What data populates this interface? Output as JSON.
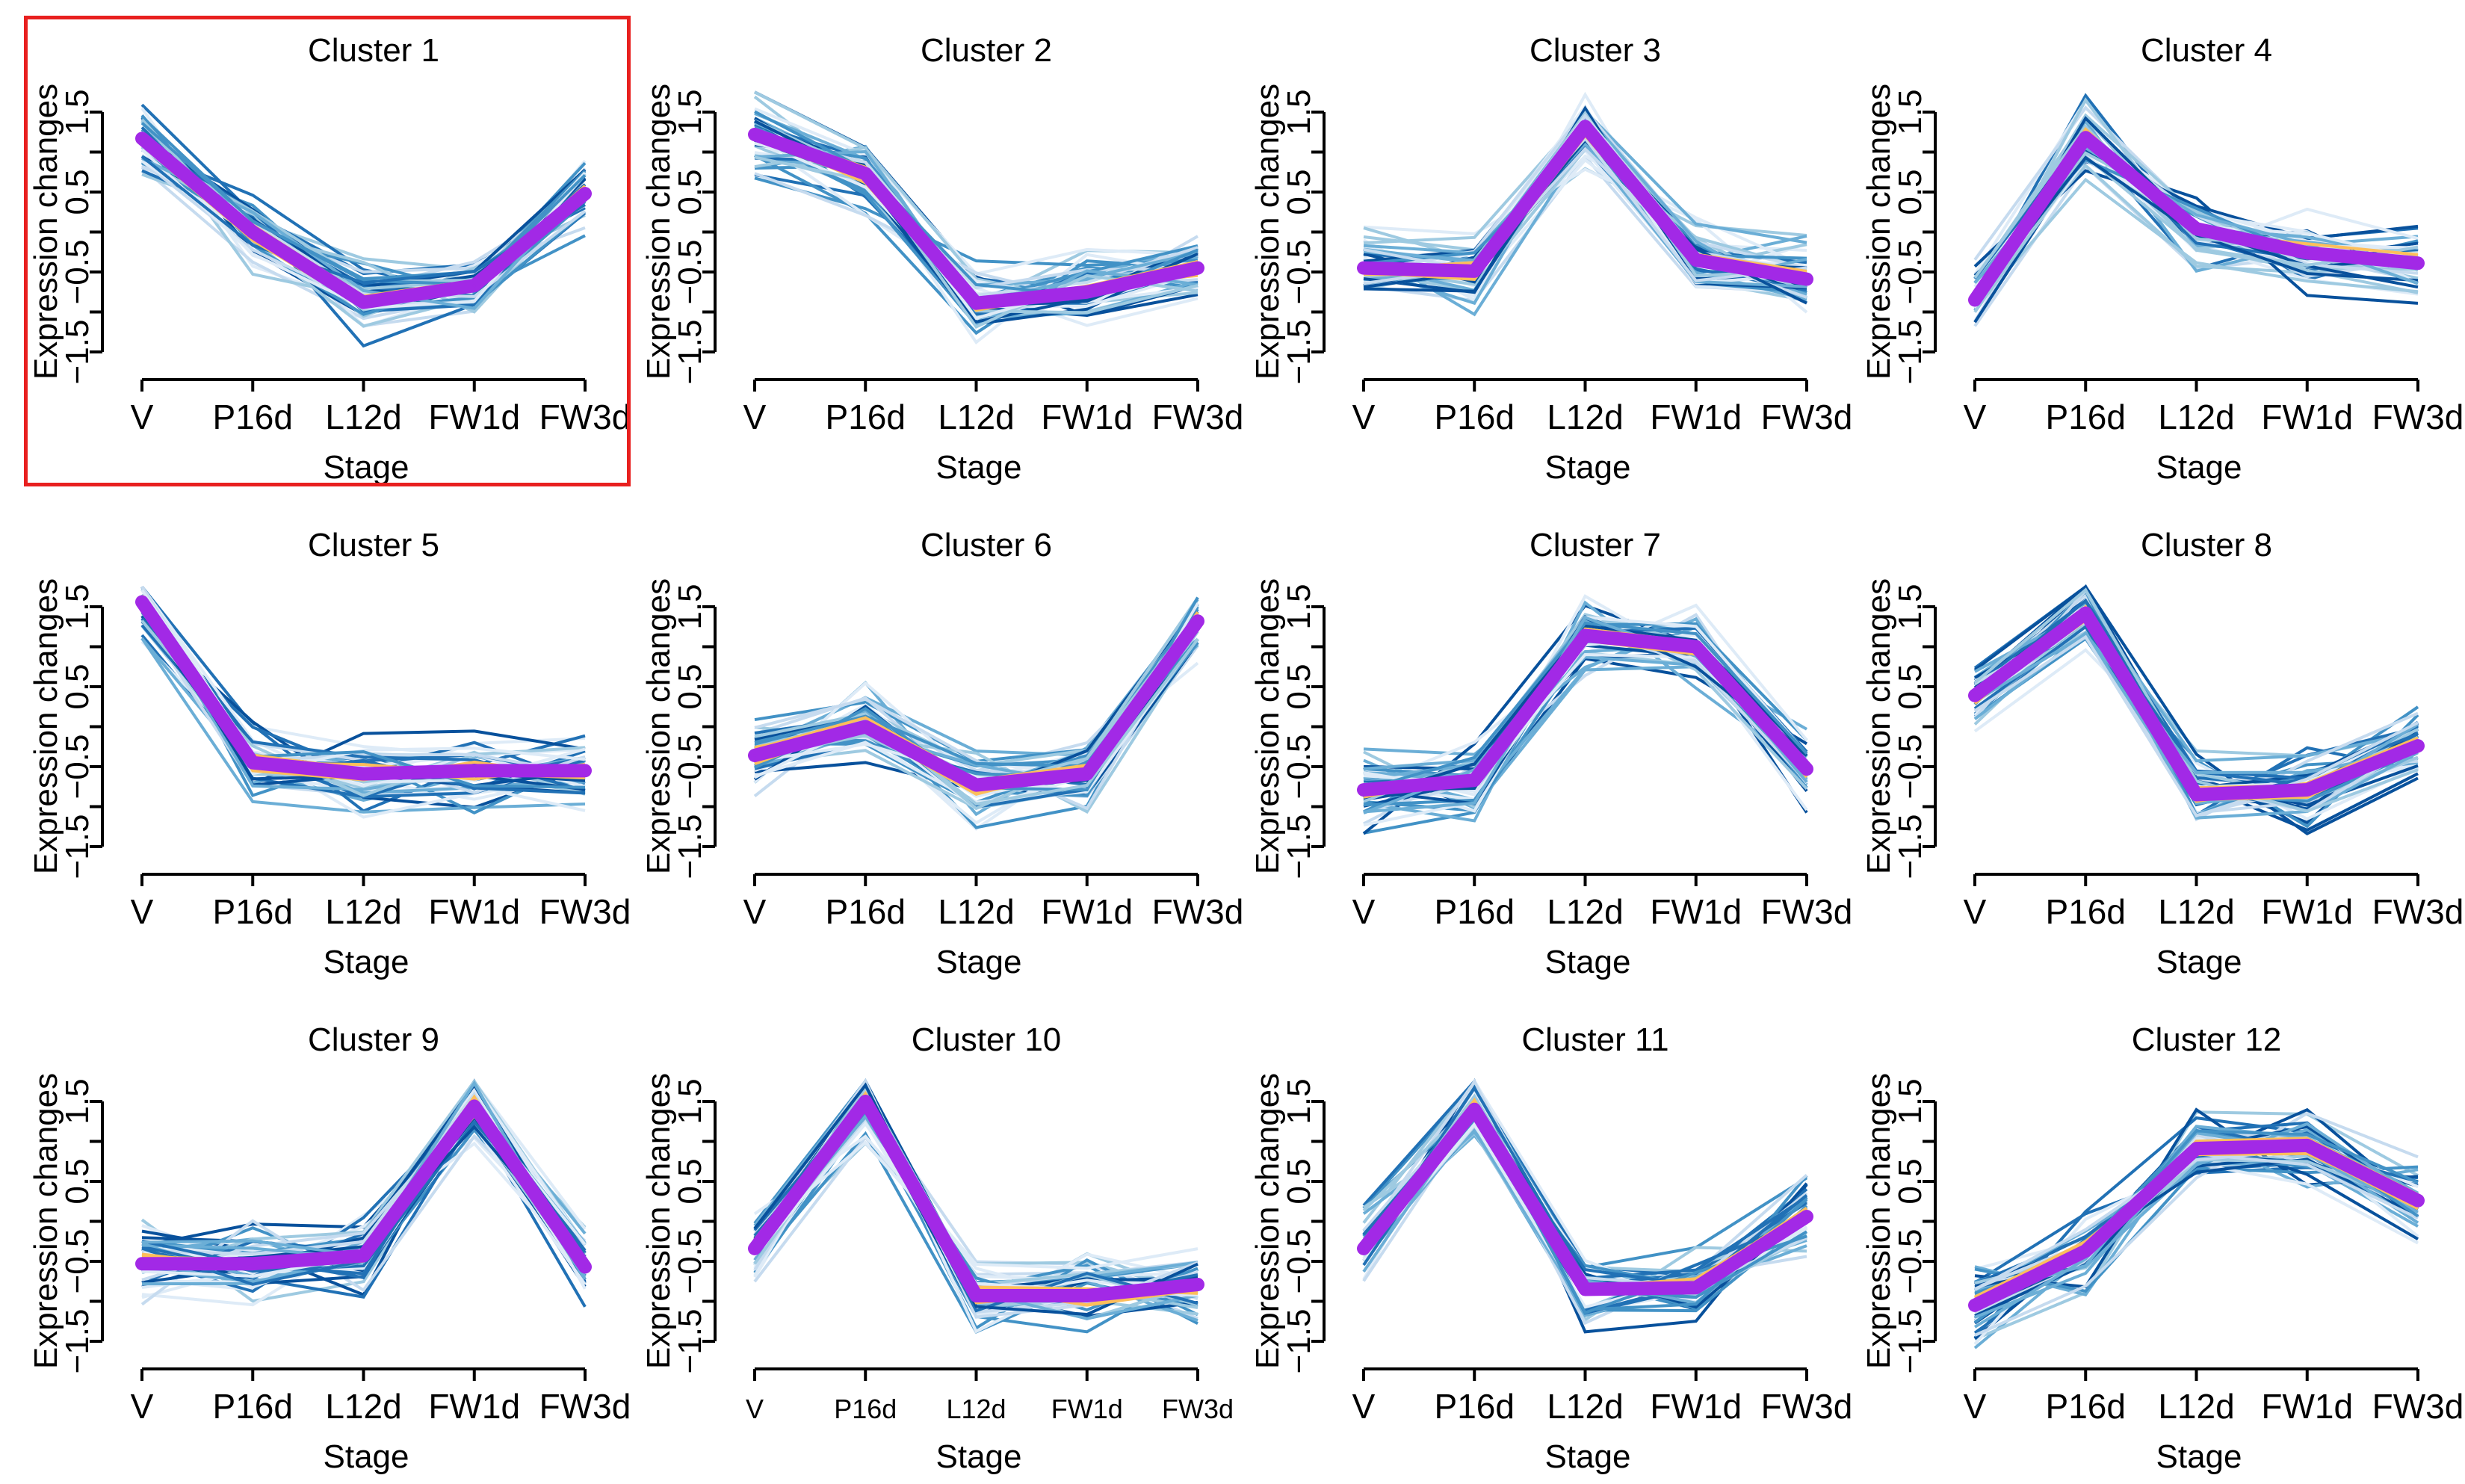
{
  "highlighted_panel": "Cluster 1",
  "highlight_color": "#e8201f",
  "colors": {
    "mean": "#a229e6",
    "highlight_profiles": "#fdbe5b",
    "profiles": [
      "#08519c",
      "#2171b5",
      "#4292c6",
      "#6baed6",
      "#9ecae1",
      "#c6dbef",
      "#deebf7"
    ]
  },
  "chart_data": [
    {
      "type": "line",
      "title": "Cluster 1",
      "xlabel": "Stage",
      "ylabel": "Expression changes",
      "categories": [
        "V",
        "P16d",
        "L12d",
        "FW1d",
        "FW3d"
      ],
      "yticks": [
        "−1.5",
        "−0.5",
        "0.5",
        "1.5"
      ],
      "ylim": [
        -1.5,
        1.5
      ],
      "series": [
        {
          "name": "mean",
          "values": [
            1.17,
            0.0,
            -0.88,
            -0.67,
            0.48
          ]
        }
      ]
    },
    {
      "type": "line",
      "title": "Cluster 2",
      "xlabel": "Stage",
      "ylabel": "Expression changes",
      "categories": [
        "V",
        "P16d",
        "L12d",
        "FW1d",
        "FW3d"
      ],
      "yticks": [
        "−1.5",
        "−0.5",
        "0.5",
        "1.5"
      ],
      "ylim": [
        -1.5,
        1.5
      ],
      "series": [
        {
          "name": "mean",
          "values": [
            1.22,
            0.73,
            -0.89,
            -0.75,
            -0.45
          ]
        }
      ]
    },
    {
      "type": "line",
      "title": "Cluster 3",
      "xlabel": "Stage",
      "ylabel": "Expression changes",
      "categories": [
        "V",
        "P16d",
        "L12d",
        "FW1d",
        "FW3d"
      ],
      "yticks": [
        "−1.5",
        "−0.5",
        "0.5",
        "1.5"
      ],
      "ylim": [
        -1.5,
        1.5
      ],
      "series": [
        {
          "name": "mean",
          "values": [
            -0.45,
            -0.49,
            1.32,
            -0.35,
            -0.59
          ]
        }
      ]
    },
    {
      "type": "line",
      "title": "Cluster 4",
      "xlabel": "Stage",
      "ylabel": "Expression changes",
      "categories": [
        "V",
        "P16d",
        "L12d",
        "FW1d",
        "FW3d"
      ],
      "yticks": [
        "−1.5",
        "−0.5",
        "0.5",
        "1.5"
      ],
      "ylim": [
        -1.5,
        1.5
      ],
      "series": [
        {
          "name": "mean",
          "values": [
            -0.85,
            1.18,
            0.04,
            -0.26,
            -0.39
          ]
        }
      ]
    },
    {
      "type": "line",
      "title": "Cluster 5",
      "xlabel": "Stage",
      "ylabel": "Expression changes",
      "categories": [
        "V",
        "P16d",
        "L12d",
        "FW1d",
        "FW3d"
      ],
      "yticks": [
        "−1.5",
        "−0.5",
        "0.5",
        "1.5"
      ],
      "ylim": [
        -1.5,
        1.5
      ],
      "series": [
        {
          "name": "mean",
          "values": [
            1.56,
            -0.45,
            -0.59,
            -0.55,
            -0.55
          ]
        }
      ]
    },
    {
      "type": "line",
      "title": "Cluster 6",
      "xlabel": "Stage",
      "ylabel": "Expression changes",
      "categories": [
        "V",
        "P16d",
        "L12d",
        "FW1d",
        "FW3d"
      ],
      "yticks": [
        "−1.5",
        "−0.5",
        "0.5",
        "1.5"
      ],
      "ylim": [
        -1.5,
        1.5
      ],
      "series": [
        {
          "name": "mean",
          "values": [
            -0.36,
            0.0,
            -0.73,
            -0.59,
            1.32
          ]
        }
      ]
    },
    {
      "type": "line",
      "title": "Cluster 7",
      "xlabel": "Stage",
      "ylabel": "Expression changes",
      "categories": [
        "V",
        "P16d",
        "L12d",
        "FW1d",
        "FW3d"
      ],
      "yticks": [
        "−1.5",
        "−0.5",
        "0.5",
        "1.5"
      ],
      "ylim": [
        -1.5,
        1.5
      ],
      "series": [
        {
          "name": "mean",
          "values": [
            -0.79,
            -0.67,
            1.14,
            1.0,
            -0.53
          ]
        }
      ]
    },
    {
      "type": "line",
      "title": "Cluster 8",
      "xlabel": "Stage",
      "ylabel": "Expression changes",
      "categories": [
        "V",
        "P16d",
        "L12d",
        "FW1d",
        "FW3d"
      ],
      "yticks": [
        "−1.5",
        "−0.5",
        "0.5",
        "1.5"
      ],
      "ylim": [
        -1.5,
        1.5
      ],
      "series": [
        {
          "name": "mean",
          "values": [
            0.39,
            1.42,
            -0.85,
            -0.79,
            -0.24
          ]
        }
      ]
    },
    {
      "type": "line",
      "title": "Cluster 9",
      "xlabel": "Stage",
      "ylabel": "Expression changes",
      "categories": [
        "V",
        "P16d",
        "L12d",
        "FW1d",
        "FW3d"
      ],
      "yticks": [
        "−1.5",
        "−0.5",
        "0.5",
        "1.5"
      ],
      "ylim": [
        -1.5,
        1.5
      ],
      "series": [
        {
          "name": "mean",
          "values": [
            -0.53,
            -0.53,
            -0.43,
            1.44,
            -0.57
          ]
        }
      ]
    },
    {
      "type": "line",
      "title": "Cluster 10",
      "xlabel": "Stage",
      "ylabel": "Expression changes",
      "categories": [
        "V",
        "P16d",
        "L12d",
        "FW1d",
        "FW3d"
      ],
      "yticks": [
        "−1.5",
        "−0.5",
        "0.5",
        "1.5"
      ],
      "ylim": [
        -1.5,
        1.5
      ],
      "series": [
        {
          "name": "mean",
          "values": [
            -0.34,
            1.5,
            -0.93,
            -0.93,
            -0.79
          ]
        }
      ]
    },
    {
      "type": "line",
      "title": "Cluster 11",
      "xlabel": "Stage",
      "ylabel": "Expression changes",
      "categories": [
        "V",
        "P16d",
        "L12d",
        "FW1d",
        "FW3d"
      ],
      "yticks": [
        "−1.5",
        "−0.5",
        "0.5",
        "1.5"
      ],
      "ylim": [
        -1.5,
        1.5
      ],
      "series": [
        {
          "name": "mean",
          "values": [
            -0.34,
            1.4,
            -0.85,
            -0.83,
            0.06
          ]
        }
      ]
    },
    {
      "type": "line",
      "title": "Cluster 12",
      "xlabel": "Stage",
      "ylabel": "Expression changes",
      "categories": [
        "V",
        "P16d",
        "L12d",
        "FW1d",
        "FW3d"
      ],
      "yticks": [
        "−1.5",
        "−0.5",
        "0.5",
        "1.5"
      ],
      "ylim": [
        -1.5,
        1.5
      ],
      "series": [
        {
          "name": "mean",
          "values": [
            -1.05,
            -0.37,
            0.91,
            0.95,
            0.26
          ]
        }
      ]
    }
  ]
}
